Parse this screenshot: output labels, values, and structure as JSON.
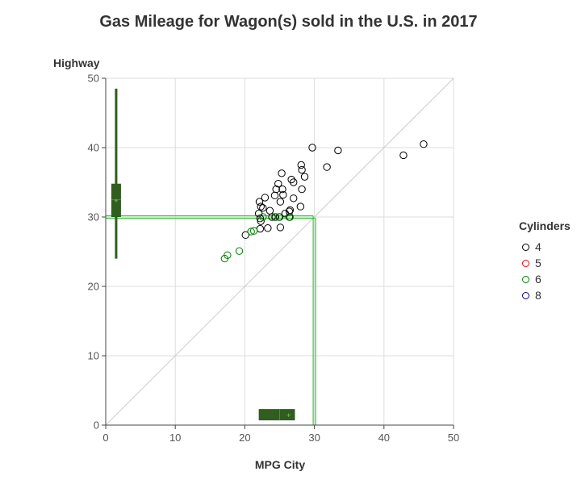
{
  "colors": {
    "cyl4": "#000000",
    "cyl5": "#ff0000",
    "cyl6": "#008000",
    "cyl8": "#00008b",
    "box_fill": "#2f5e1f",
    "ref_line": "#33cc33",
    "grid": "#dddddd",
    "diagonal": "#cccccc"
  },
  "chart_data": {
    "type": "scatter",
    "title": "Gas Mileage for Wagon(s) sold in the U.S. in 2017",
    "xlabel": "MPG City",
    "ylabel": "Highway",
    "xlim": [
      0,
      50
    ],
    "ylim": [
      0,
      50
    ],
    "x_ticks": [
      "0",
      "10",
      "20",
      "30",
      "40",
      "50"
    ],
    "y_ticks": [
      "0",
      "10",
      "20",
      "30",
      "40",
      "50"
    ],
    "grid": true,
    "diagonal_reference_line": true,
    "reference_lines": {
      "x": 30,
      "y": 30
    },
    "legend_placement": "right",
    "legend": {
      "title": "Cylinders",
      "items": [
        {
          "label": "4",
          "color_key": "cyl4"
        },
        {
          "label": "5",
          "color_key": "cyl5"
        },
        {
          "label": "6",
          "color_key": "cyl6"
        },
        {
          "label": "8",
          "color_key": "cyl8"
        }
      ]
    },
    "box_city": {
      "q1": 22,
      "median": 25,
      "q3": 27.2,
      "mean": 26.3
    },
    "box_highway": {
      "min": 24,
      "q1": 30,
      "median": 32.5,
      "q3": 34.8,
      "max": 48.5,
      "mean": 32.3
    },
    "series": [
      {
        "name": "4",
        "color_key": "cyl4",
        "points": [
          [
            45.7,
            40.5
          ],
          [
            42.8,
            38.9
          ],
          [
            33.4,
            39.6
          ],
          [
            31.8,
            37.2
          ],
          [
            29.7,
            40.0
          ],
          [
            28.1,
            37.5
          ],
          [
            28.2,
            36.8
          ],
          [
            28.6,
            35.8
          ],
          [
            28.2,
            34.0
          ],
          [
            28.0,
            31.5
          ],
          [
            27.0,
            35.0
          ],
          [
            26.7,
            35.4
          ],
          [
            27.0,
            32.7
          ],
          [
            26.5,
            31.0
          ],
          [
            26.4,
            30.0
          ],
          [
            26.4,
            30.8
          ],
          [
            25.8,
            30.5
          ],
          [
            25.4,
            34.0
          ],
          [
            25.5,
            33.2
          ],
          [
            25.3,
            36.3
          ],
          [
            25.1,
            32.2
          ],
          [
            24.8,
            34.8
          ],
          [
            24.5,
            34.0
          ],
          [
            24.3,
            33.1
          ],
          [
            24.4,
            30.0
          ],
          [
            25.0,
            30.0
          ],
          [
            25.1,
            28.5
          ],
          [
            23.9,
            30.0
          ],
          [
            23.6,
            30.9
          ],
          [
            23.3,
            28.4
          ],
          [
            22.9,
            32.8
          ],
          [
            22.6,
            31.3
          ],
          [
            22.3,
            31.5
          ],
          [
            22.1,
            32.2
          ],
          [
            22.0,
            30.5
          ],
          [
            22.2,
            29.8
          ],
          [
            22.3,
            29.4
          ],
          [
            22.2,
            28.3
          ],
          [
            20.1,
            27.4
          ]
        ]
      },
      {
        "name": "6",
        "color_key": "cyl6",
        "points": [
          [
            17.1,
            24.0
          ],
          [
            17.5,
            24.5
          ],
          [
            19.2,
            25.1
          ],
          [
            20.9,
            27.9
          ],
          [
            21.3,
            28.0
          ],
          [
            22.6,
            30.0
          ],
          [
            24.3,
            30.0
          ],
          [
            24.9,
            30.0
          ],
          [
            26.5,
            30.0
          ]
        ]
      }
    ]
  }
}
